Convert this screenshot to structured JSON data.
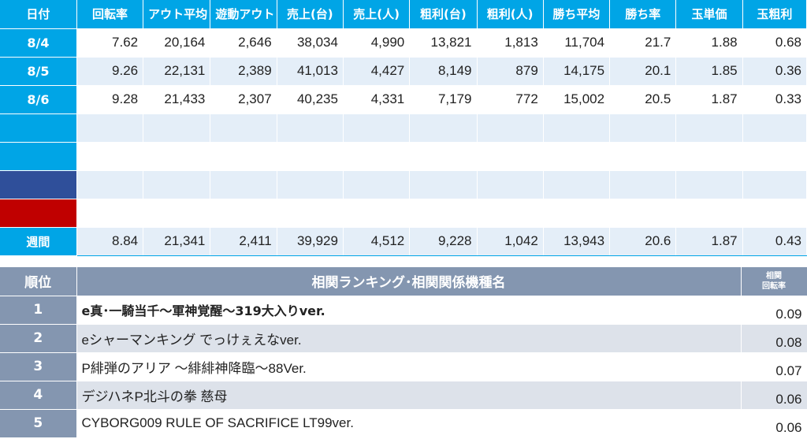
{
  "top_table": {
    "headers": [
      "日付",
      "回転率",
      "アウト平均",
      "遊動アウト",
      "売上(台)",
      "売上(人)",
      "粗利(台)",
      "粗利(人)",
      "勝ち平均",
      "勝ち率",
      "玉単価",
      "玉粗利"
    ],
    "rows": [
      {
        "date": "8/4",
        "values": [
          "7.62",
          "20,164",
          "2,646",
          "38,034",
          "4,990",
          "13,821",
          "1,813",
          "11,704",
          "21.7",
          "1.88",
          "0.68"
        ]
      },
      {
        "date": "8/5",
        "values": [
          "9.26",
          "22,131",
          "2,389",
          "41,013",
          "4,427",
          "8,149",
          "879",
          "14,175",
          "20.1",
          "1.85",
          "0.36"
        ]
      },
      {
        "date": "8/6",
        "values": [
          "9.28",
          "21,433",
          "2,307",
          "40,235",
          "4,331",
          "7,179",
          "772",
          "15,002",
          "20.5",
          "1.87",
          "0.33"
        ]
      },
      {
        "date": "",
        "values": [
          "",
          "",
          "",
          "",
          "",
          "",
          "",
          "",
          "",
          "",
          ""
        ]
      },
      {
        "date": "",
        "values": [
          "",
          "",
          "",
          "",
          "",
          "",
          "",
          "",
          "",
          "",
          ""
        ]
      },
      {
        "date": "",
        "values": [
          "",
          "",
          "",
          "",
          "",
          "",
          "",
          "",
          "",
          "",
          ""
        ]
      },
      {
        "date": "",
        "values": [
          "",
          "",
          "",
          "",
          "",
          "",
          "",
          "",
          "",
          "",
          ""
        ]
      }
    ],
    "weekly": {
      "label": "週間",
      "values": [
        "8.84",
        "21,341",
        "2,411",
        "39,929",
        "4,512",
        "9,228",
        "1,042",
        "13,943",
        "20.6",
        "1.87",
        "0.43"
      ]
    }
  },
  "ranking": {
    "header_rank": "順位",
    "header_title": "相関ランキング･相関関係機種名",
    "header_corr_line1": "相関",
    "header_corr_line2": "回転率",
    "items": [
      {
        "rank": "1",
        "name": "e真･一騎当千～軍神覚醒～319大入りver.",
        "value": "0.09"
      },
      {
        "rank": "2",
        "name": "eシャーマンキング でっけぇえなver.",
        "value": "0.08"
      },
      {
        "rank": "3",
        "name": "P緋弾のアリア ～緋緋神降臨～88Ver.",
        "value": "0.07"
      },
      {
        "rank": "4",
        "name": "デジハネP北斗の拳 慈母",
        "value": "0.06"
      },
      {
        "rank": "5",
        "name": "CYBORG009 RULE OF SACRIFICE LT99ver.",
        "value": "0.06"
      }
    ]
  },
  "colors": {
    "header_blue": "#00a5e6",
    "row_stripe": "#e4eef8",
    "navy_marker": "#2f4f9a",
    "red_marker": "#c00000",
    "rank_header": "#8496b0"
  }
}
